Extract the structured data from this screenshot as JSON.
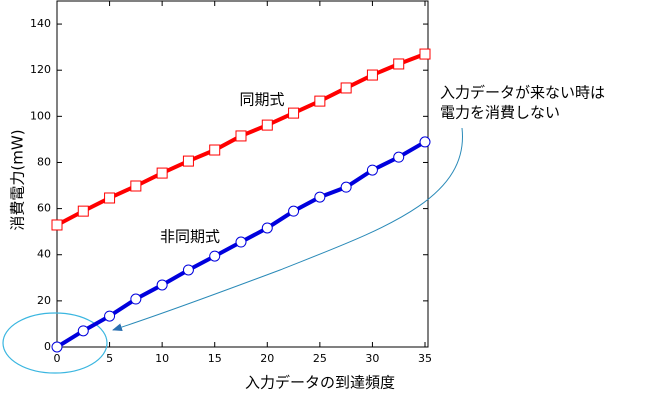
{
  "chart_data": {
    "type": "line",
    "x_label": "入力データの到達頻度",
    "y_label": "消費電力(mW)",
    "x": [
      0,
      2.5,
      5,
      7.5,
      10,
      12.5,
      15,
      17.5,
      20,
      22.5,
      25,
      27.5,
      30,
      32.5,
      35
    ],
    "series": [
      {
        "name": "同期式",
        "color": "#ff0000",
        "marker": "square",
        "values": [
          52.9,
          58.9,
          64.6,
          69.8,
          75.4,
          80.6,
          85.4,
          91.5,
          96.2,
          101.4,
          106.6,
          112.3,
          117.9,
          122.7,
          127
        ]
      },
      {
        "name": "非同期式",
        "color": "#0000dd",
        "marker": "circle",
        "values": [
          0,
          7,
          13.4,
          20.8,
          26.9,
          33.4,
          39.4,
          45.5,
          51.6,
          58.9,
          65,
          69.3,
          76.7,
          82.3,
          88.9
        ]
      }
    ],
    "annotation": [
      "入力データが来ない時は",
      "電力を消費しない"
    ],
    "xlim": [
      0,
      35
    ],
    "xticks": [
      0,
      5,
      10,
      15,
      20,
      25,
      30,
      35
    ],
    "ylim": [
      0,
      150
    ],
    "yticks": [
      0,
      20,
      40,
      60,
      80,
      100,
      120,
      140
    ],
    "grid": false
  }
}
